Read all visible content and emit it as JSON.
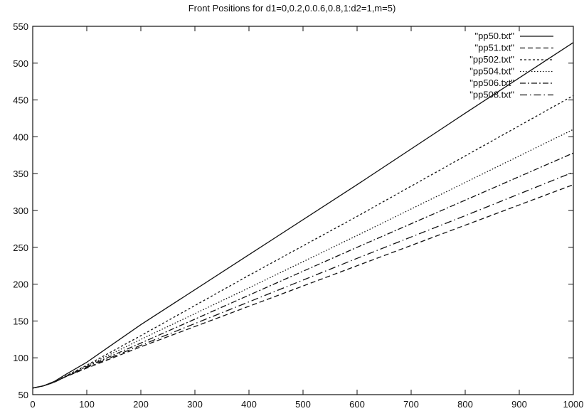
{
  "chart_data": {
    "type": "line",
    "title": "Front Positions for d1=0,0.2,0.0.6,0.8,1:d2=1,m=5)",
    "xlabel": "",
    "ylabel": "",
    "xlim": [
      0,
      1000
    ],
    "ylim": [
      50,
      550
    ],
    "xticks": [
      0,
      100,
      200,
      300,
      400,
      500,
      600,
      700,
      800,
      900,
      1000
    ],
    "yticks": [
      50,
      100,
      150,
      200,
      250,
      300,
      350,
      400,
      450,
      500,
      550
    ],
    "grid": false,
    "legend_position": "top-right",
    "series": [
      {
        "name": "\"pp50.txt\"",
        "dash": "solid",
        "x": [
          0,
          20,
          40,
          60,
          100,
          200,
          400,
          600,
          800,
          1000
        ],
        "y": [
          59,
          62,
          68,
          77,
          94,
          145,
          240,
          335,
          432,
          528
        ]
      },
      {
        "name": "\"pp51.txt\"",
        "dash": "dashed",
        "x": [
          0,
          20,
          40,
          60,
          100,
          200,
          400,
          600,
          800,
          1000
        ],
        "y": [
          59,
          62,
          67,
          74,
          86,
          115,
          170,
          225,
          280,
          335
        ]
      },
      {
        "name": "\"pp502.txt\"",
        "dash": "dotted-dense",
        "x": [
          0,
          20,
          40,
          60,
          100,
          200,
          400,
          600,
          800,
          1000
        ],
        "y": [
          59,
          62,
          67,
          75,
          90,
          130,
          212,
          292,
          374,
          456
        ]
      },
      {
        "name": "\"pp504.txt\"",
        "dash": "dotted",
        "x": [
          0,
          20,
          40,
          60,
          100,
          200,
          400,
          600,
          800,
          1000
        ],
        "y": [
          59,
          62,
          67,
          75,
          89,
          125,
          195,
          266,
          338,
          410
        ]
      },
      {
        "name": "\"pp506.txt\"",
        "dash": "dash-dot",
        "x": [
          0,
          20,
          40,
          60,
          100,
          200,
          400,
          600,
          800,
          1000
        ],
        "y": [
          59,
          62,
          67,
          74,
          88,
          120,
          185,
          250,
          314,
          378
        ]
      },
      {
        "name": "\"pp508.txt\"",
        "dash": "dash-dot-sparse",
        "x": [
          0,
          20,
          40,
          60,
          100,
          200,
          400,
          600,
          800,
          1000
        ],
        "y": [
          59,
          62,
          67,
          74,
          87,
          117,
          176,
          235,
          293,
          352
        ]
      }
    ]
  }
}
